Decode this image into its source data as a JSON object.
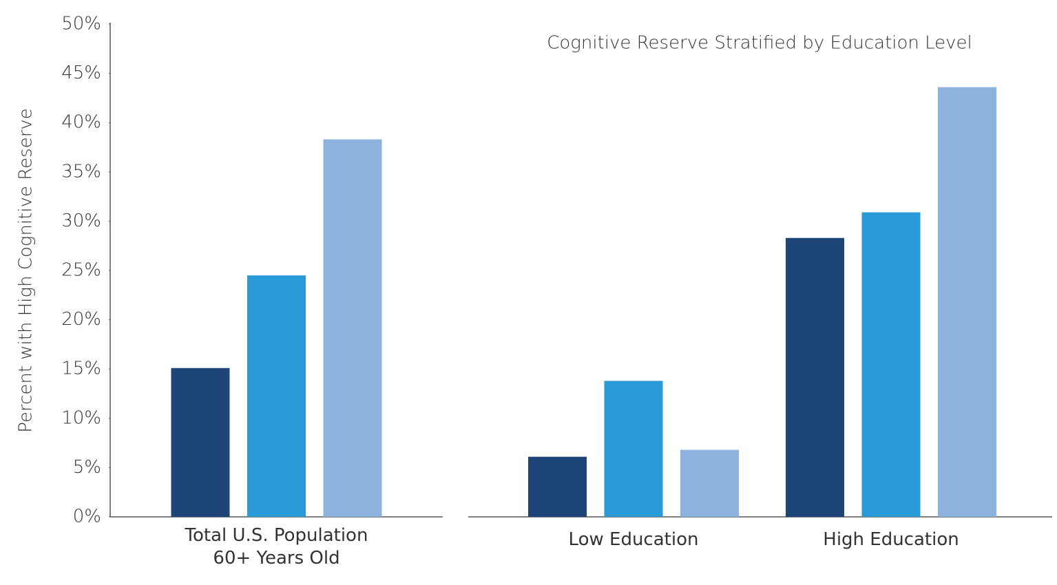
{
  "chart_data": [
    {
      "type": "bar",
      "y_label": "Percent with High Cognitive Reserve",
      "categories": [
        "Total U.S. Population\n60+ Years Old"
      ],
      "series": [
        {
          "color": "#1e4577",
          "values": [
            15.1
          ]
        },
        {
          "color": "#2a99d8",
          "values": [
            24.5
          ]
        },
        {
          "color": "#8db2de",
          "values": [
            38.3
          ]
        }
      ],
      "ylim": [
        0,
        50
      ],
      "yticks": [
        {
          "value": 0,
          "label": "0%"
        },
        {
          "value": 5,
          "label": "5%"
        },
        {
          "value": 10,
          "label": "10%"
        },
        {
          "value": 15,
          "label": "15%"
        },
        {
          "value": 20,
          "label": "20%"
        },
        {
          "value": 25,
          "label": "25%"
        },
        {
          "value": 30,
          "label": "30%"
        },
        {
          "value": 35,
          "label": "35%"
        },
        {
          "value": 40,
          "label": "40%"
        },
        {
          "value": 45,
          "label": "45%"
        },
        {
          "value": 50,
          "label": "50%"
        }
      ]
    },
    {
      "type": "bar",
      "title": "Cognitive Reserve Stratified by Education Level",
      "categories": [
        "Low Education",
        "High Education"
      ],
      "series": [
        {
          "color": "#1e4577",
          "values": [
            6.1,
            28.3
          ]
        },
        {
          "color": "#2a99d8",
          "values": [
            13.8,
            30.9
          ]
        },
        {
          "color": "#8db2de",
          "values": [
            6.8,
            43.6
          ]
        }
      ],
      "ylim": [
        0,
        50
      ]
    }
  ]
}
